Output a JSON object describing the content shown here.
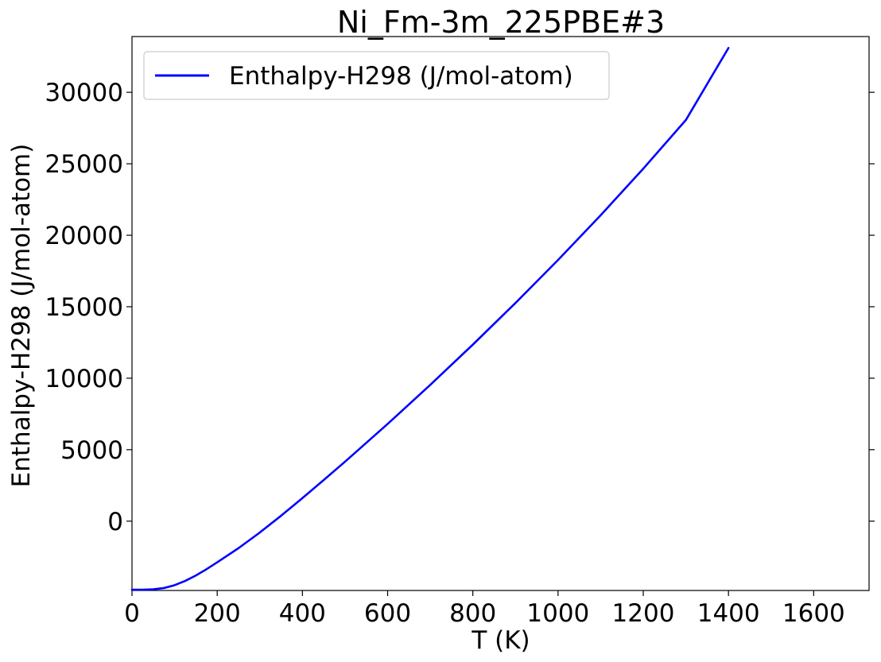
{
  "chart_data": {
    "type": "line",
    "title": "Ni_Fm-3m_225PBE#3",
    "xlabel": "T (K)",
    "ylabel": "Enthalpy-H298 (J/mol-atom)",
    "xlim": [
      0,
      1730
    ],
    "ylim": [
      -4850,
      33900
    ],
    "xticks": [
      0,
      200,
      400,
      600,
      800,
      1000,
      1200,
      1400,
      1600
    ],
    "yticks": [
      0,
      5000,
      10000,
      15000,
      20000,
      25000,
      30000
    ],
    "grid": false,
    "legend_position": "upper-left",
    "series": [
      {
        "name": "Enthalpy-H298 (J/mol-atom)",
        "color": "#0000ff",
        "x": [
          0,
          25,
          50,
          75,
          100,
          125,
          150,
          175,
          200,
          250,
          298,
          350,
          400,
          450,
          500,
          600,
          700,
          800,
          900,
          1000,
          1100,
          1200,
          1300,
          1400
        ],
        "y": [
          -4800,
          -4798,
          -4770,
          -4680,
          -4480,
          -4180,
          -3800,
          -3360,
          -2880,
          -1890,
          -840,
          380,
          1610,
          2880,
          4160,
          6800,
          9530,
          12350,
          15260,
          18270,
          21400,
          24660,
          28060,
          33100
        ]
      }
    ]
  }
}
